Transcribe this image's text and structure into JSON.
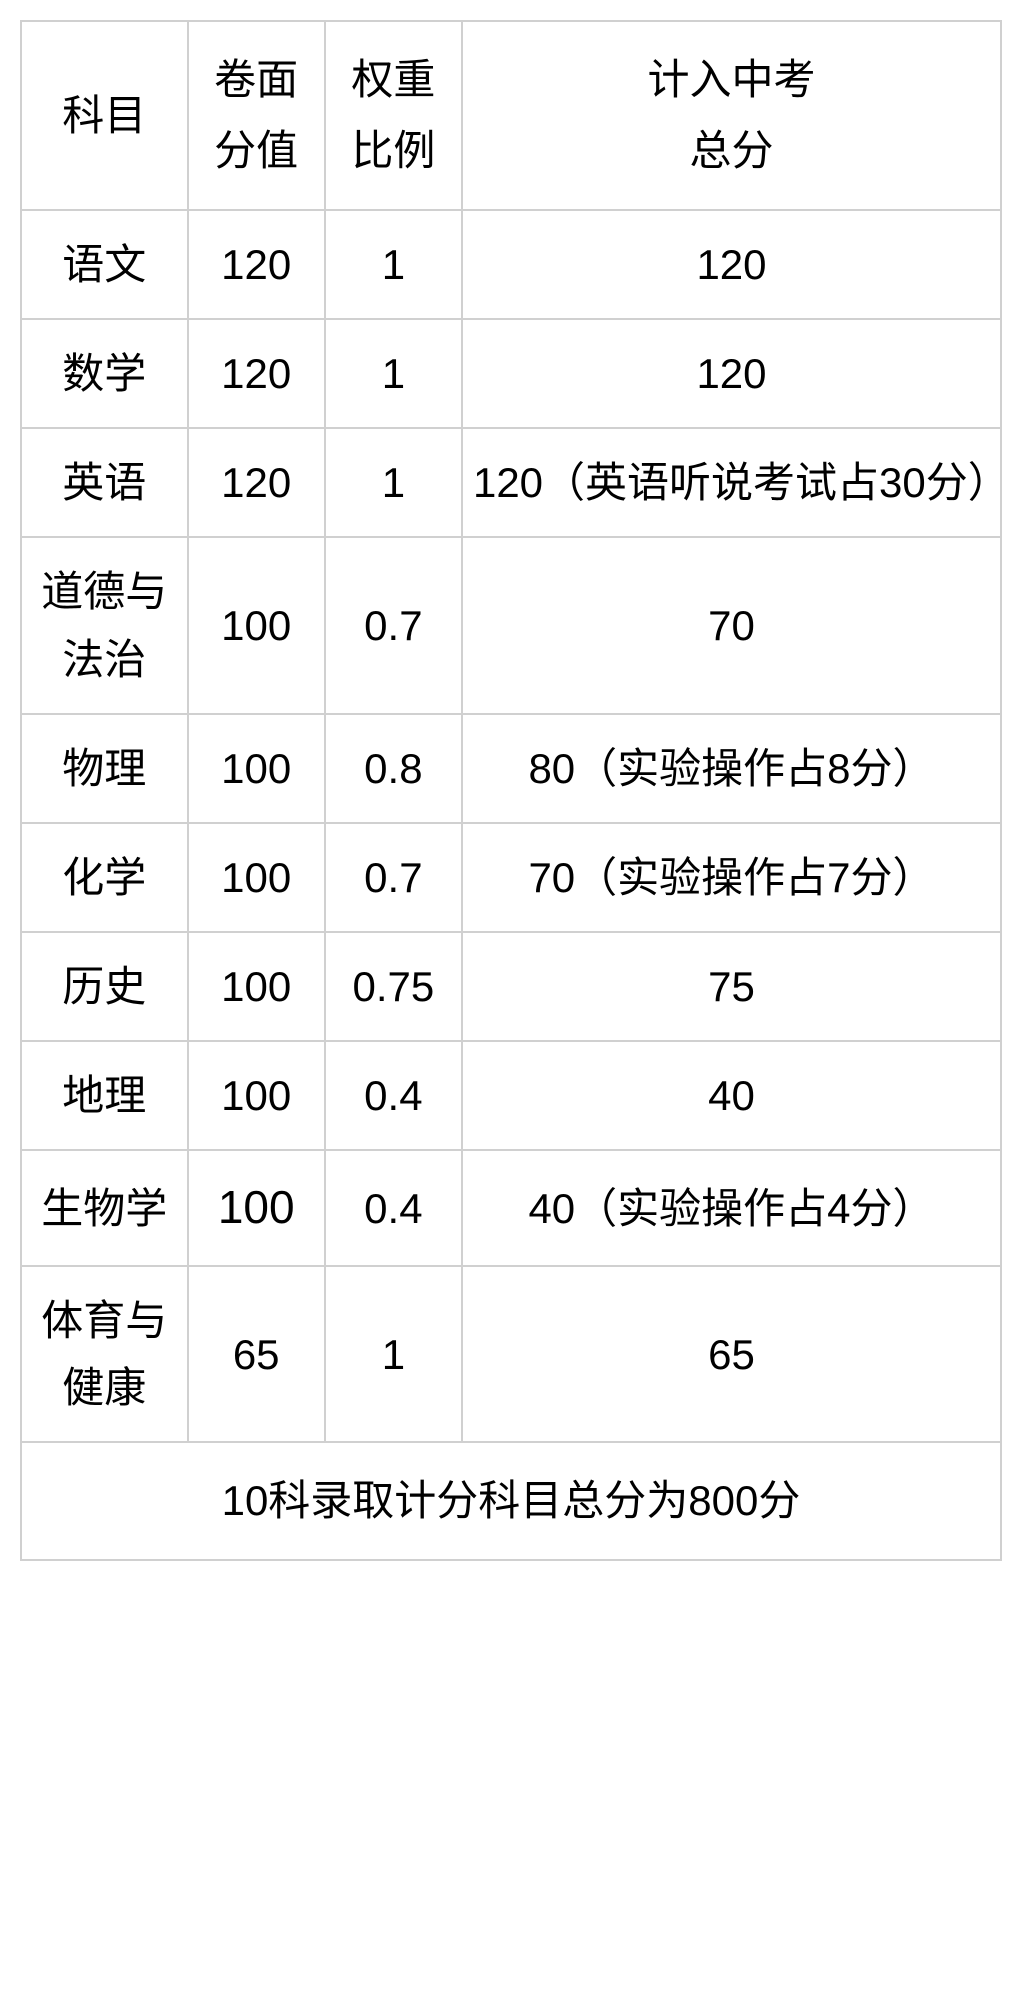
{
  "table": {
    "type": "table",
    "background_color": "#ffffff",
    "border_color": "#d0d0d0",
    "text_color": "#000000",
    "font_size": 42,
    "columns": [
      {
        "key": "subject",
        "label": "科目",
        "width_pct": 17
      },
      {
        "key": "paper_score",
        "label": "卷面\n分值",
        "width_pct": 14
      },
      {
        "key": "weight",
        "label": "权重\n比例",
        "width_pct": 14
      },
      {
        "key": "total",
        "label": "计入中考\n总分",
        "width_pct": 55
      }
    ],
    "header": {
      "subject": "科目",
      "paper_score_line1": "卷面",
      "paper_score_line2": "分值",
      "weight_line1": "权重",
      "weight_line2": "比例",
      "total_line1": "计入中考",
      "total_line2": "总分"
    },
    "rows": [
      {
        "subject": "语文",
        "paper_score": "120",
        "weight": "1",
        "total": "120"
      },
      {
        "subject": "数学",
        "paper_score": "120",
        "weight": "1",
        "total": "120"
      },
      {
        "subject": "英语",
        "paper_score": "120",
        "weight": "1",
        "total": "120（英语听说考试占30分）"
      },
      {
        "subject": "道德与法治",
        "paper_score": "100",
        "weight": "0.7",
        "total": "70"
      },
      {
        "subject": "物理",
        "paper_score": "100",
        "weight": "0.8",
        "total": "80（实验操作占8分）"
      },
      {
        "subject": "化学",
        "paper_score": "100",
        "weight": "0.7",
        "total": "70（实验操作占7分）"
      },
      {
        "subject": "历史",
        "paper_score": "100",
        "weight": "0.75",
        "total": "75"
      },
      {
        "subject": "地理",
        "paper_score": "100",
        "weight": "0.4",
        "total": "40"
      },
      {
        "subject": "生物学",
        "paper_score": "100",
        "weight": "0.4",
        "total": "40（实验操作占4分）",
        "paper_score_larger": true
      },
      {
        "subject": "体育与健康",
        "paper_score": "65",
        "weight": "1",
        "total": "65"
      }
    ],
    "footer": "10科录取计分科目总分为800分"
  }
}
